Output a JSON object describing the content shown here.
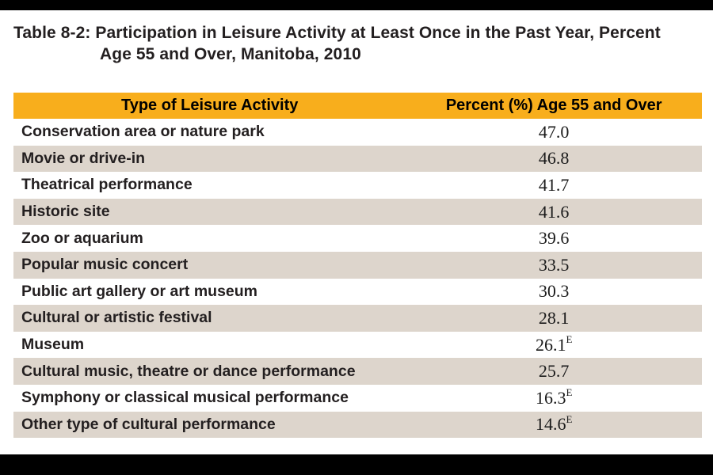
{
  "page": {
    "background": "#FFFFFF",
    "top_bar_color": "#000000",
    "bottom_bar_color": "#000000",
    "title_line1": "Table 8-2: Participation in Leisure Activity at Least Once in the Past Year, Percent",
    "title_line2": "Age 55 and Over, Manitoba, 2010"
  },
  "table": {
    "header_bg": "#F8AE1C",
    "stripe_bg": "#DDD5CC",
    "columns": [
      "Type of Leisure Activity",
      "Percent (%) Age 55 and Over"
    ],
    "rows": [
      {
        "activity": "Conservation area or nature park",
        "value": "47.0",
        "flag": ""
      },
      {
        "activity": "Movie or drive-in",
        "value": "46.8",
        "flag": ""
      },
      {
        "activity": "Theatrical performance",
        "value": "41.7",
        "flag": ""
      },
      {
        "activity": "Historic site",
        "value": "41.6",
        "flag": ""
      },
      {
        "activity": "Zoo or aquarium",
        "value": "39.6",
        "flag": ""
      },
      {
        "activity": "Popular music concert",
        "value": "33.5",
        "flag": ""
      },
      {
        "activity": "Public art gallery or art museum",
        "value": "30.3",
        "flag": ""
      },
      {
        "activity": "Cultural or artistic festival",
        "value": "28.1",
        "flag": ""
      },
      {
        "activity": "Museum",
        "value": "26.1",
        "flag": "E"
      },
      {
        "activity": "Cultural music, theatre or dance performance",
        "value": "25.7",
        "flag": ""
      },
      {
        "activity": "Symphony or classical musical performance",
        "value": "16.3",
        "flag": "E"
      },
      {
        "activity": "Other type of cultural performance",
        "value": "14.6",
        "flag": "E"
      }
    ]
  },
  "chart_data": {
    "type": "table",
    "title": "Table 8-2: Participation in Leisure Activity at Least Once in the Past Year, Percent Age 55 and Over, Manitoba, 2010",
    "columns": [
      "Type of Leisure Activity",
      "Percent (%) Age 55 and Over"
    ],
    "categories": [
      "Conservation area or nature park",
      "Movie or drive-in",
      "Theatrical performance",
      "Historic site",
      "Zoo or aquarium",
      "Popular music concert",
      "Public art gallery or art museum",
      "Cultural or artistic festival",
      "Museum",
      "Cultural music, theatre or dance performance",
      "Symphony or classical musical performance",
      "Other type of cultural performance"
    ],
    "values": [
      47.0,
      46.8,
      41.7,
      41.6,
      39.6,
      33.5,
      30.3,
      28.1,
      26.1,
      25.7,
      16.3,
      14.6
    ],
    "value_flags": [
      "",
      "",
      "",
      "",
      "",
      "",
      "",
      "",
      "E",
      "",
      "E",
      "E"
    ],
    "layout_hints": {
      "zebra_striping": true,
      "stripe_color": "#DDD5CC",
      "header_color": "#F8AE1C",
      "value_font": "serif",
      "label_font": "bold sans-serif"
    }
  }
}
